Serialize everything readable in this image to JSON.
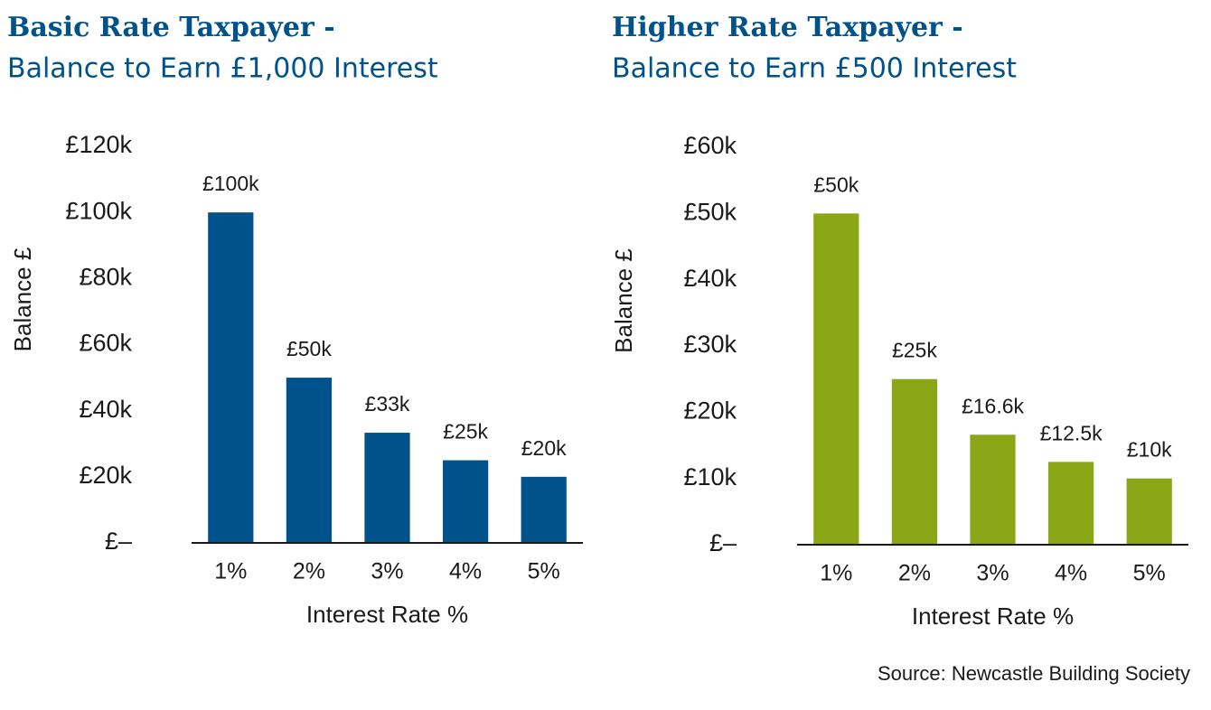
{
  "chart_data": [
    {
      "type": "bar",
      "title": "Basic Rate Taxpayer -",
      "subtitle": "Balance to Earn £1,000 Interest",
      "categories": [
        "1%",
        "2%",
        "3%",
        "4%",
        "5%"
      ],
      "values": [
        100000,
        50000,
        33333,
        25000,
        20000
      ],
      "value_labels": [
        "£100k",
        "£50k",
        "£33k",
        "£25k",
        "£20k"
      ],
      "color": "#00528a",
      "ylim": [
        0,
        120000
      ],
      "yticks": [
        {
          "value": 0,
          "label": "£–"
        },
        {
          "value": 20000,
          "label": "£20k"
        },
        {
          "value": 40000,
          "label": "£40k"
        },
        {
          "value": 60000,
          "label": "£60k"
        },
        {
          "value": 80000,
          "label": "£80k"
        },
        {
          "value": 100000,
          "label": "£100k"
        },
        {
          "value": 120000,
          "label": "£120k"
        }
      ],
      "xlabel": "Interest Rate %",
      "ylabel": "Balance £"
    },
    {
      "type": "bar",
      "title": "Higher Rate Taxpayer -",
      "subtitle": "Balance to Earn £500 Interest",
      "categories": [
        "1%",
        "2%",
        "3%",
        "4%",
        "5%"
      ],
      "values": [
        50000,
        25000,
        16600,
        12500,
        10000
      ],
      "value_labels": [
        "£50k",
        "£25k",
        "£16.6k",
        "£12.5k",
        "£10k"
      ],
      "color": "#8ba717",
      "ylim": [
        0,
        60000
      ],
      "yticks": [
        {
          "value": 0,
          "label": "£–"
        },
        {
          "value": 10000,
          "label": "£10k"
        },
        {
          "value": 20000,
          "label": "£20k"
        },
        {
          "value": 30000,
          "label": "£30k"
        },
        {
          "value": 40000,
          "label": "£40k"
        },
        {
          "value": 50000,
          "label": "£50k"
        },
        {
          "value": 60000,
          "label": "£60k"
        }
      ],
      "xlabel": "Interest Rate %",
      "ylabel": "Balance £"
    }
  ],
  "source": "Source: Newcastle Building Society"
}
